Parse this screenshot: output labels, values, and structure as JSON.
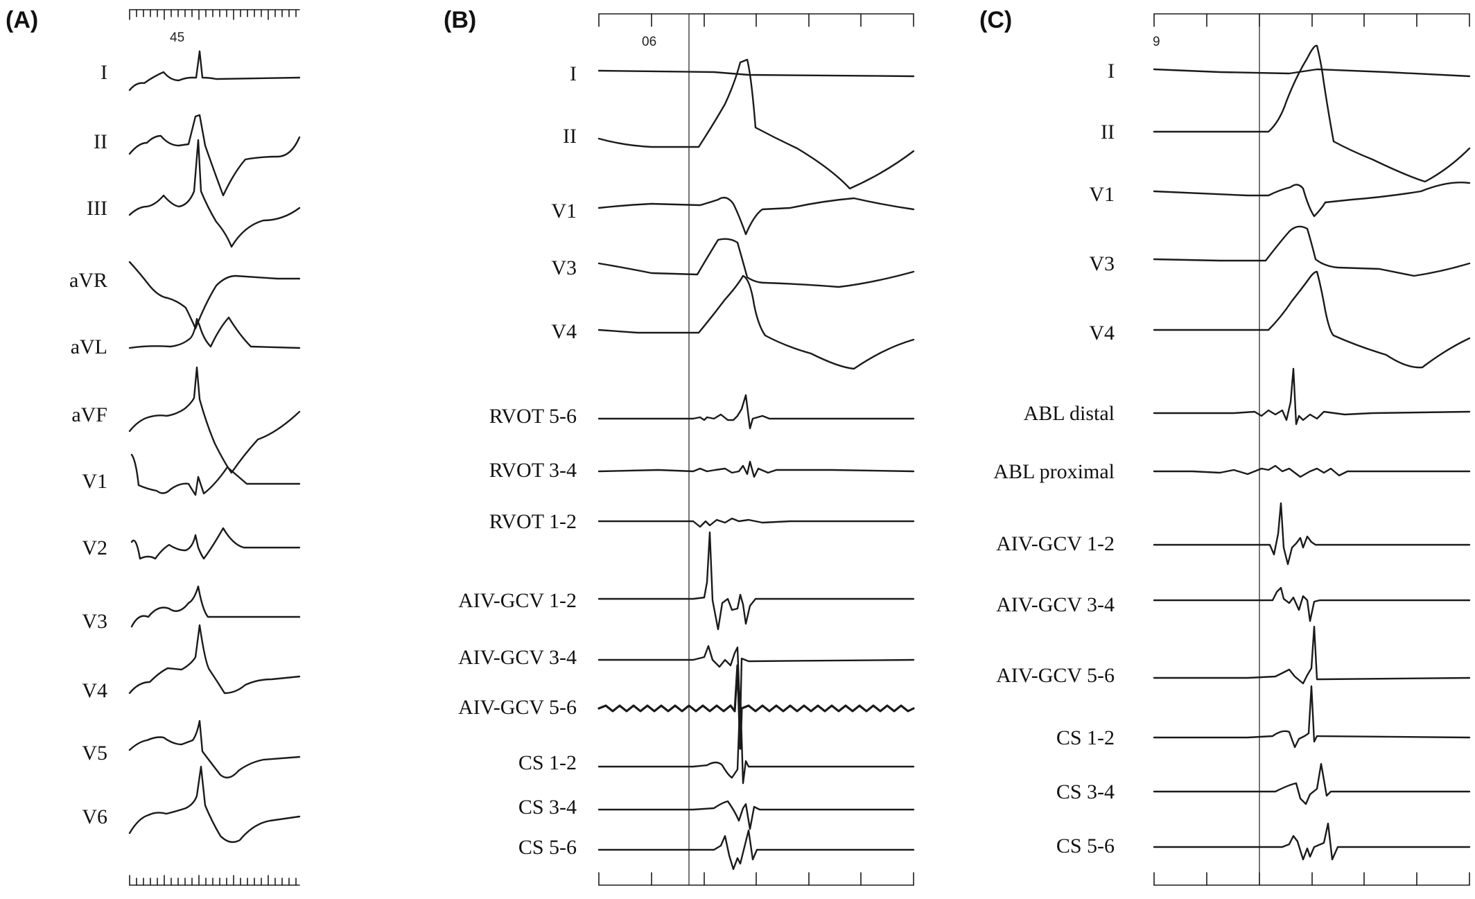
{
  "panels": [
    {
      "letter": "(A)",
      "ruler_label": "45",
      "leads": [
        "I",
        "II",
        "III",
        "aVR",
        "aVL",
        "aVF",
        "V1",
        "V2",
        "V3",
        "V4",
        "V5",
        "V6"
      ]
    },
    {
      "letter": "(B)",
      "ruler_label": "06",
      "leads": [
        "I",
        "II",
        "V1",
        "V3",
        "V4",
        "RVOT 5-6",
        "RVOT 3-4",
        "RVOT 1-2",
        "AIV-GCV 1-2",
        "AIV-GCV 3-4",
        "AIV-GCV 5-6",
        "CS 1-2",
        "CS 3-4",
        "CS 5-6"
      ]
    },
    {
      "letter": "(C)",
      "ruler_label": "9",
      "leads": [
        "I",
        "II",
        "V1",
        "V3",
        "V4",
        "ABL distal",
        "ABL proximal",
        "AIV-GCV 1-2",
        "AIV-GCV 3-4",
        "AIV-GCV 5-6",
        "CS 1-2",
        "CS 3-4",
        "CS 5-6"
      ]
    }
  ],
  "colors": {
    "trace": "#1a1a1a",
    "background": "#ffffff"
  }
}
